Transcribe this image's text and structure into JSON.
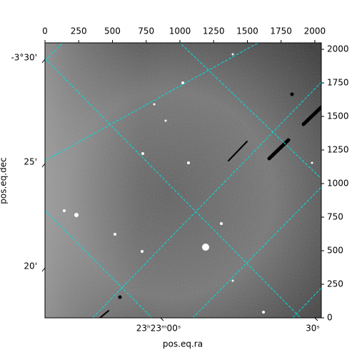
{
  "chart_data": {
    "type": "image",
    "xlim": [
      0,
      2048
    ],
    "ylim": [
      0,
      2048
    ],
    "xticks": [
      0,
      250,
      500,
      750,
      1000,
      1250,
      1500,
      1750,
      2000
    ],
    "yticks": [
      0,
      250,
      500,
      750,
      1000,
      1250,
      1500,
      1750,
      2000
    ],
    "xlabel": "pos.eq.ra",
    "ylabel": "pos.eq.dec",
    "ra_ticks": [
      "23ʰ23ᵐ00ˢ",
      "30ˢ"
    ],
    "dec_ticks": [
      "-3°30'",
      "25'",
      "20'"
    ],
    "grid_color": "#00e0e0"
  }
}
